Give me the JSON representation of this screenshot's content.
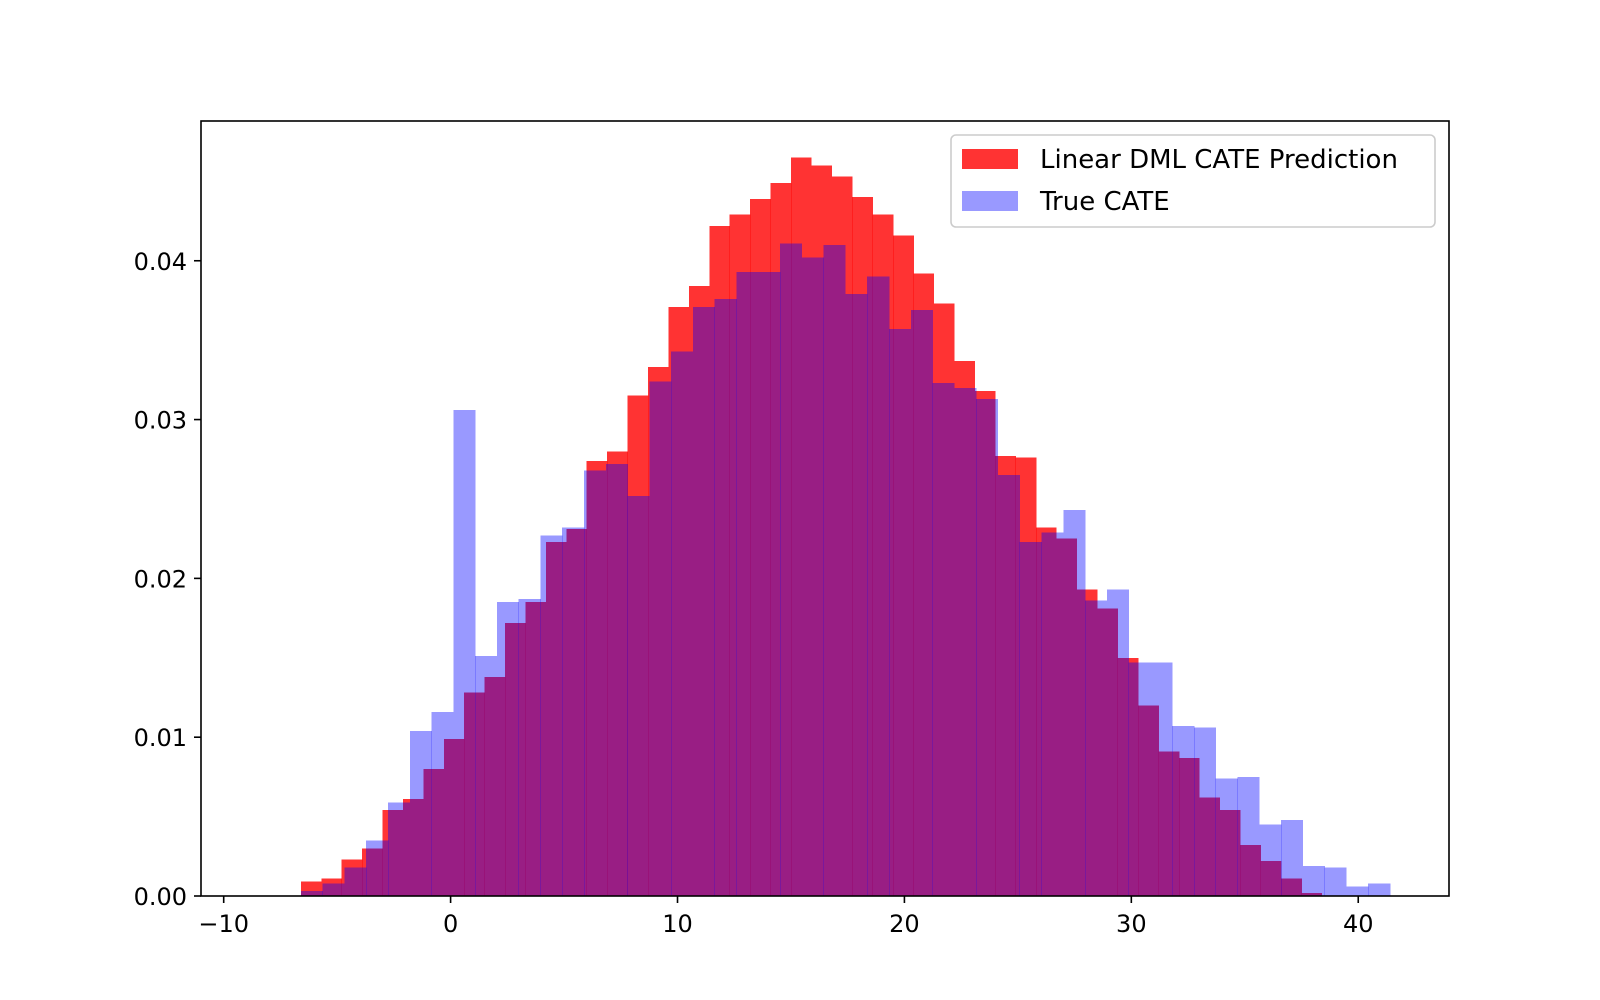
{
  "chart_data": {
    "type": "bar",
    "title": "",
    "xlabel": "",
    "ylabel": "",
    "xlim": [
      -11,
      44
    ],
    "ylim": [
      0,
      0.0488
    ],
    "grid": false,
    "legend_position": "top-right",
    "x_ticks": [
      -10,
      0,
      10,
      20,
      30,
      40
    ],
    "x_tick_labels": [
      "−10",
      "0",
      "10",
      "20",
      "30",
      "40"
    ],
    "y_ticks": [
      0,
      0.01,
      0.02,
      0.03,
      0.04
    ],
    "y_tick_labels": [
      "0.00",
      "0.01",
      "0.02",
      "0.03",
      "0.04"
    ],
    "series": [
      {
        "name": "Linear DML CATE Prediction",
        "color": "#ff0000",
        "opacity": 0.8,
        "bin_start": -6.6,
        "bin_width": 0.9,
        "values": [
          0.0009,
          0.0011,
          0.0023,
          0.003,
          0.0054,
          0.0061,
          0.008,
          0.0099,
          0.0128,
          0.0138,
          0.0172,
          0.0185,
          0.0223,
          0.0231,
          0.0274,
          0.028,
          0.0315,
          0.0333,
          0.0371,
          0.0384,
          0.0422,
          0.0429,
          0.0439,
          0.0449,
          0.0465,
          0.046,
          0.0453,
          0.044,
          0.0429,
          0.0416,
          0.0392,
          0.0373,
          0.0337,
          0.0318,
          0.0277,
          0.0276,
          0.0232,
          0.0225,
          0.0193,
          0.0181,
          0.015,
          0.012,
          0.0091,
          0.0087,
          0.0062,
          0.0054,
          0.0032,
          0.0022,
          0.0011,
          0.0002
        ]
      },
      {
        "name": "True CATE",
        "color": "#0000ff",
        "opacity": 0.4,
        "bin_start": -6.6,
        "bin_width": 0.96,
        "values": [
          0.0003,
          0.0008,
          0.0018,
          0.0035,
          0.0059,
          0.0104,
          0.0116,
          0.0306,
          0.0151,
          0.0185,
          0.0187,
          0.0227,
          0.0232,
          0.0268,
          0.0272,
          0.0252,
          0.0324,
          0.0343,
          0.0371,
          0.0376,
          0.0393,
          0.0393,
          0.0411,
          0.0402,
          0.041,
          0.0379,
          0.039,
          0.0357,
          0.0369,
          0.0323,
          0.032,
          0.0313,
          0.0265,
          0.0223,
          0.0229,
          0.0243,
          0.0186,
          0.0193,
          0.0147,
          0.0147,
          0.0107,
          0.0106,
          0.0074,
          0.0075,
          0.0045,
          0.0048,
          0.0019,
          0.0018,
          0.0006,
          0.0008
        ]
      }
    ]
  }
}
